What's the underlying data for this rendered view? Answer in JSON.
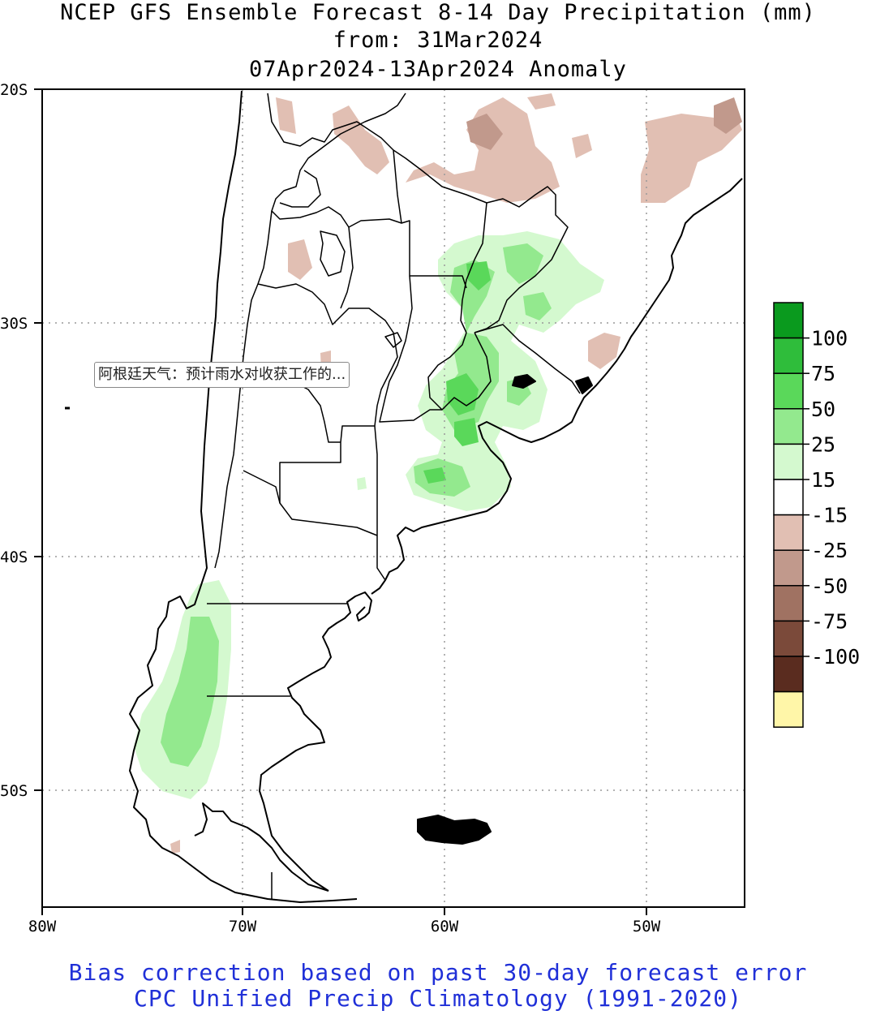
{
  "title": {
    "line1": "NCEP GFS Ensemble Forecast 8-14 Day Precipitation (mm)",
    "line2": "from: 31Mar2024",
    "line3": "07Apr2024-13Apr2024 Anomaly"
  },
  "map": {
    "lat_labels": [
      "20S",
      "30S",
      "40S",
      "50S"
    ],
    "lon_labels": [
      "80W",
      "70W",
      "60W",
      "50W"
    ]
  },
  "legend": {
    "labels": [
      "100",
      "75",
      "50",
      "25",
      "15",
      "-15",
      "-25",
      "-50",
      "-75",
      "-100"
    ],
    "colors": [
      "#0a9a1e",
      "#2fbd3b",
      "#5ad85a",
      "#93e98e",
      "#d4f9cf",
      "#ffffff",
      "#e1bfb3",
      "#c1998c",
      "#a07262",
      "#7b4a3a",
      "#5a2c1f",
      "#fff6a8"
    ]
  },
  "tooltip": {
    "text": "阿根廷天气：预计雨水对收获工作的..."
  },
  "footer": {
    "line1": "Bias correction based on past 30-day forecast error",
    "line2": "CPC Unified Precip Climatology (1991-2020)"
  }
}
